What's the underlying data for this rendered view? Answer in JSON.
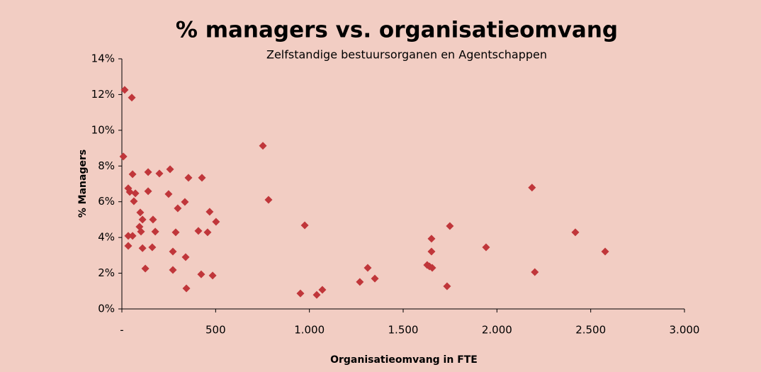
{
  "chart_data": {
    "type": "scatter",
    "title": "% managers vs. organisatieomvang",
    "subtitle": "Zelfstandige bestuursorganen en Agentschappen",
    "x_label": "Organisatieomvang in FTE",
    "y_label": "% Managers",
    "color": "#c0363a",
    "background": "#f2cdc3",
    "grid": false,
    "xlim": [
      0,
      3000
    ],
    "ylim": [
      0,
      14
    ],
    "xticks": [
      {
        "value": 0,
        "label": "-"
      },
      {
        "value": 500,
        "label": "500"
      },
      {
        "value": 1000,
        "label": "1.000"
      },
      {
        "value": 1500,
        "label": "1.500"
      },
      {
        "value": 2000,
        "label": "2.000"
      },
      {
        "value": 2500,
        "label": "2.500"
      },
      {
        "value": 3000,
        "label": "3.000"
      }
    ],
    "yticks": [
      {
        "value": 0,
        "label": "0%"
      },
      {
        "value": 2,
        "label": "2%"
      },
      {
        "value": 4,
        "label": "4%"
      },
      {
        "value": 6,
        "label": "6%"
      },
      {
        "value": 8,
        "label": "8%"
      },
      {
        "value": 10,
        "label": "10%"
      },
      {
        "value": 12,
        "label": "12%"
      },
      {
        "value": 14,
        "label": "14%"
      }
    ],
    "x": [
      15,
      53,
      8,
      57,
      34,
      42,
      72,
      64,
      34,
      57,
      34,
      98,
      110,
      94,
      102,
      110,
      125,
      140,
      140,
      166,
      178,
      162,
      200,
      257,
      249,
      298,
      287,
      272,
      272,
      336,
      340,
      344,
      355,
      408,
      427,
      423,
      468,
      457,
      502,
      484,
      752,
      782,
      975,
      952,
      1039,
      1069,
      1269,
      1311,
      1349,
      1628,
      1651,
      1651,
      1655,
      1640,
      1749,
      1734,
      1942,
      2187,
      2202,
      2418,
      2577
    ],
    "values": [
      12.26,
      11.83,
      8.53,
      7.54,
      6.75,
      6.55,
      6.47,
      6.03,
      4.09,
      4.09,
      3.53,
      5.4,
      5.0,
      4.6,
      4.33,
      3.4,
      2.26,
      7.66,
      6.59,
      5.0,
      4.33,
      3.45,
      7.58,
      7.82,
      6.43,
      5.63,
      4.29,
      3.21,
      2.18,
      5.99,
      2.9,
      1.15,
      7.34,
      4.37,
      7.34,
      1.94,
      5.44,
      4.29,
      4.88,
      1.87,
      9.13,
      6.11,
      4.68,
      0.87,
      0.79,
      1.07,
      1.51,
      2.3,
      1.7,
      2.46,
      3.93,
      3.21,
      2.3,
      2.38,
      4.64,
      1.27,
      3.45,
      6.79,
      2.06,
      4.29,
      3.21
    ]
  }
}
